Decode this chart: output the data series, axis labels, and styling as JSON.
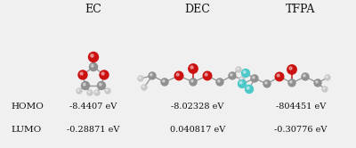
{
  "title_EC": "EC",
  "title_DEC": "DEC",
  "title_TFPA": "TFPA",
  "homo_label": "HOMO",
  "lumo_label": "LUMO",
  "homo_EC": "-8.4407 eV",
  "homo_DEC": "-8.02328 eV",
  "homo_TFPA": "-804451 eV",
  "lumo_EC": "-0.28871 eV",
  "lumo_DEC": "0.040817 eV",
  "lumo_TFPA": "-0.30776 eV",
  "bg_color": "#f0f0f0",
  "text_color": "#111111",
  "atom_C": "#909090",
  "atom_O": "#cc1111",
  "atom_H": "#c8c8c8",
  "atom_F": "#4dc8c8",
  "bond_color": "#999999",
  "title_fontsize": 9,
  "label_fontsize": 7.5,
  "value_fontsize": 7
}
